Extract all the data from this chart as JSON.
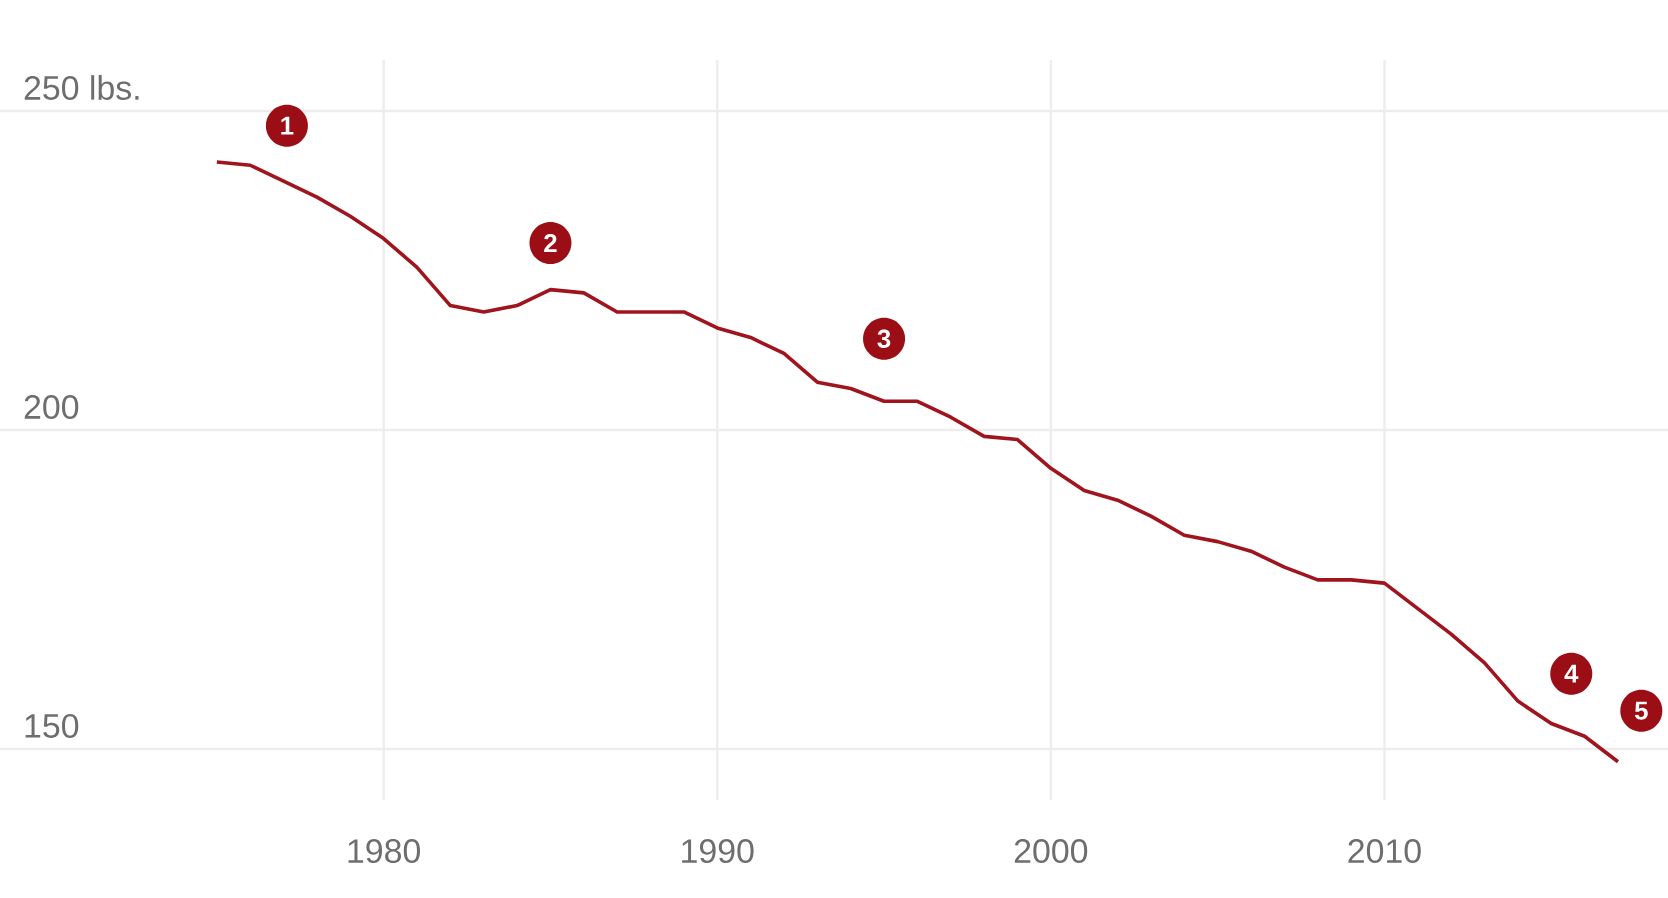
{
  "chart_data": {
    "type": "line",
    "x": [
      1975,
      1976,
      1977,
      1978,
      1979,
      1980,
      1981,
      1982,
      1983,
      1984,
      1985,
      1986,
      1987,
      1988,
      1989,
      1990,
      1991,
      1992,
      1993,
      1994,
      1995,
      1996,
      1997,
      1998,
      1999,
      2000,
      2001,
      2002,
      2003,
      2004,
      2005,
      2006,
      2007,
      2008,
      2009,
      2010,
      2011,
      2012,
      2013,
      2014,
      2015,
      2016,
      2017
    ],
    "values": [
      242,
      241.5,
      239,
      236.5,
      233.5,
      230,
      225.5,
      219.5,
      218.5,
      219.5,
      222,
      221.5,
      218.5,
      218.5,
      218.5,
      216,
      214.5,
      212,
      207.5,
      206.5,
      204.5,
      204.5,
      202,
      199,
      198.5,
      194,
      190.5,
      189,
      186.5,
      183.5,
      182.5,
      181,
      178.5,
      176.5,
      176.5,
      176,
      172,
      168,
      163.5,
      157.5,
      154,
      152,
      148
    ],
    "color": "#a0141e",
    "xlim": [
      1968.5,
      2018.5
    ],
    "ylim": [
      142,
      258
    ],
    "xticks": [
      1980,
      1990,
      2000,
      2010
    ],
    "yticks": [
      150,
      200,
      {
        "value": 250,
        "label": "250 lbs."
      }
    ],
    "grid": true,
    "annotations": [
      {
        "text": "1",
        "x": 1977.1,
        "y": 247.7
      },
      {
        "text": "2",
        "x": 1985,
        "y": 229.3
      },
      {
        "text": "3",
        "x": 1995,
        "y": 214.3
      },
      {
        "text": "4",
        "x": 2015.6,
        "y": 161.8
      },
      {
        "text": "5",
        "x": 2017.7,
        "y": 156
      }
    ]
  }
}
